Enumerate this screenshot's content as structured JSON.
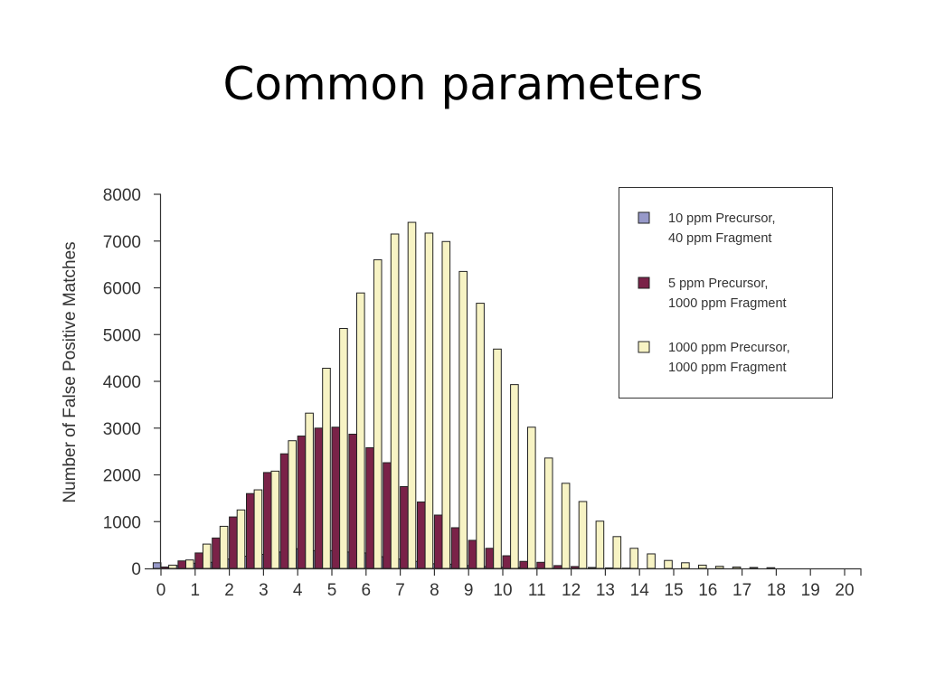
{
  "slide": {
    "title": "Common parameters"
  },
  "colors": {
    "series": [
      "#9799c9",
      "#7a2248",
      "#f7f3c4"
    ],
    "stroke": "#222222",
    "axis": "#333333"
  },
  "chart_data": {
    "type": "bar",
    "title": "",
    "xlabel": "",
    "ylabel": "Number of False Positive Matches",
    "ylim": [
      0,
      8000
    ],
    "yticks": [
      0,
      1000,
      2000,
      3000,
      4000,
      5000,
      6000,
      7000,
      8000
    ],
    "xlim": [
      0,
      20
    ],
    "xticks": [
      0,
      1,
      2,
      3,
      4,
      5,
      6,
      7,
      8,
      9,
      10,
      11,
      12,
      13,
      14,
      15,
      16,
      17,
      18,
      19,
      20
    ],
    "x": [
      0,
      0.5,
      1,
      1.5,
      2,
      2.5,
      3,
      3.5,
      4,
      4.5,
      5,
      5.5,
      6,
      6.5,
      7,
      7.5,
      8,
      8.5,
      9,
      9.5,
      10,
      10.5,
      11,
      11.5,
      12,
      12.5,
      13,
      13.5,
      14,
      14.5,
      15,
      15.5,
      16,
      16.5,
      17,
      17.5
    ],
    "series": [
      {
        "name": "10 ppm Precursor,\n40 ppm Fragment",
        "values": [
          120,
          60,
          110,
          130,
          200,
          260,
          300,
          350,
          420,
          380,
          380,
          350,
          330,
          250,
          200,
          150,
          100,
          90,
          60,
          40,
          25,
          20,
          10,
          5,
          0,
          0,
          0,
          0,
          0,
          0,
          0,
          0,
          0,
          0,
          0,
          0
        ]
      },
      {
        "name": "5 ppm Precursor,\n1000 ppm Fragment",
        "values": [
          30,
          160,
          330,
          650,
          1100,
          1600,
          2050,
          2450,
          2830,
          3000,
          3020,
          2870,
          2580,
          2260,
          1750,
          1420,
          1140,
          870,
          600,
          430,
          270,
          150,
          130,
          60,
          40,
          20,
          10,
          5,
          0,
          0,
          0,
          0,
          0,
          0,
          0,
          0
        ]
      },
      {
        "name": "1000 ppm Precursor,\n1000 ppm Fragment",
        "values": [
          70,
          180,
          520,
          900,
          1250,
          1680,
          2080,
          2730,
          3320,
          4280,
          5130,
          5890,
          6600,
          7150,
          7400,
          7170,
          6990,
          6350,
          5670,
          4690,
          3930,
          3020,
          2360,
          1820,
          1430,
          1010,
          680,
          430,
          310,
          170,
          120,
          70,
          45,
          30,
          20,
          15
        ]
      }
    ],
    "grid": false,
    "legend_position": "top-right"
  }
}
